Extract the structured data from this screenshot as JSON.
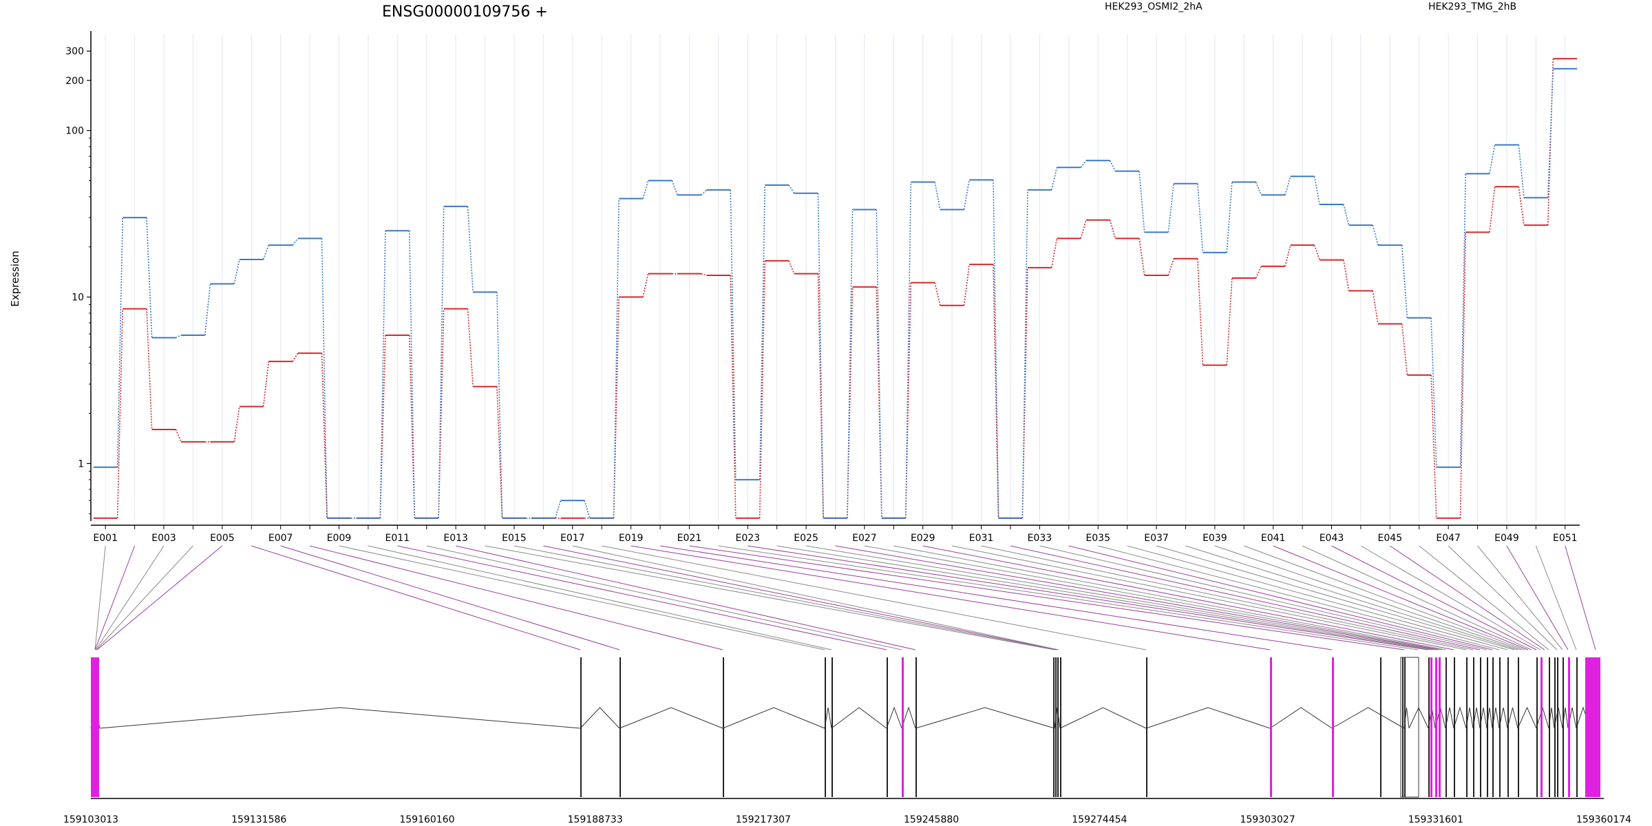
{
  "chart_data": {
    "type": "line",
    "title": "ENSG00000109756 +",
    "ylabel": "Expression",
    "y_scale": "log",
    "ylim": [
      0.46,
      350
    ],
    "y_ticks": [
      1,
      10,
      100,
      200,
      300
    ],
    "categories": [
      "E001",
      "E002",
      "E003",
      "E004",
      "E005",
      "E006",
      "E007",
      "E008",
      "E009",
      "E010",
      "E011",
      "E012",
      "E013",
      "E014",
      "E015",
      "E016",
      "E017",
      "E018",
      "E019",
      "E020",
      "E021",
      "E022",
      "E023",
      "E024",
      "E025",
      "E026",
      "E027",
      "E028",
      "E029",
      "E030",
      "E031",
      "E032",
      "E033",
      "E034",
      "E035",
      "E036",
      "E037",
      "E038",
      "E039",
      "E040",
      "E041",
      "E042",
      "E043",
      "E044",
      "E045",
      "E046",
      "E047",
      "E048",
      "E049",
      "E050",
      "E051"
    ],
    "x_tick_labels": [
      "E001",
      "E003",
      "E005",
      "E007",
      "E009",
      "E011",
      "E013",
      "E015",
      "E017",
      "E019",
      "E021",
      "E023",
      "E025",
      "E027",
      "E029",
      "E031",
      "E033",
      "E035",
      "E037",
      "E039",
      "E041",
      "E043",
      "E045",
      "E047",
      "E049",
      "E051"
    ],
    "legend_placement": "top",
    "grid": "vertical",
    "series": [
      {
        "name": "HEK293_OSMI2_2hA",
        "color": "#d62728",
        "values": [
          0.47,
          8.5,
          1.6,
          1.35,
          1.35,
          2.2,
          4.1,
          4.6,
          0.47,
          0.47,
          5.9,
          0.47,
          8.5,
          2.9,
          0.47,
          0.47,
          0.47,
          0.47,
          10,
          13.8,
          13.8,
          13.5,
          0.47,
          16.5,
          13.8,
          0.47,
          11.5,
          0.47,
          12.2,
          8.9,
          15.7,
          0.47,
          15,
          22.5,
          29,
          22.5,
          13.5,
          17,
          3.9,
          13,
          15.3,
          20.5,
          16.7,
          10.9,
          6.9,
          3.4,
          0.47,
          24.5,
          46,
          27,
          270
        ]
      },
      {
        "name": "HEK293_TMG_2hB",
        "color": "#3a78c3",
        "values": [
          0.95,
          30,
          5.7,
          5.9,
          12,
          16.8,
          20.5,
          22.5,
          0.47,
          0.47,
          25,
          0.47,
          35,
          10.7,
          0.47,
          0.47,
          0.6,
          0.47,
          39,
          50,
          41,
          44,
          0.8,
          47,
          42,
          0.47,
          33.5,
          0.47,
          49,
          33.5,
          50.5,
          0.47,
          44,
          60,
          66,
          57,
          24.5,
          48,
          18.5,
          49,
          41,
          53,
          36,
          27,
          20.5,
          7.5,
          0.95,
          55,
          82,
          39.5,
          235
        ]
      }
    ],
    "gene_model": {
      "genomic_range": [
        159103013,
        159360174
      ],
      "coordinate_labels": [
        "159103013",
        "159131586",
        "159160160",
        "159188733",
        "159217307",
        "159245880",
        "159274454",
        "159303027",
        "159331601",
        "159360174"
      ],
      "highlight_color": "#e020e0"
    }
  }
}
